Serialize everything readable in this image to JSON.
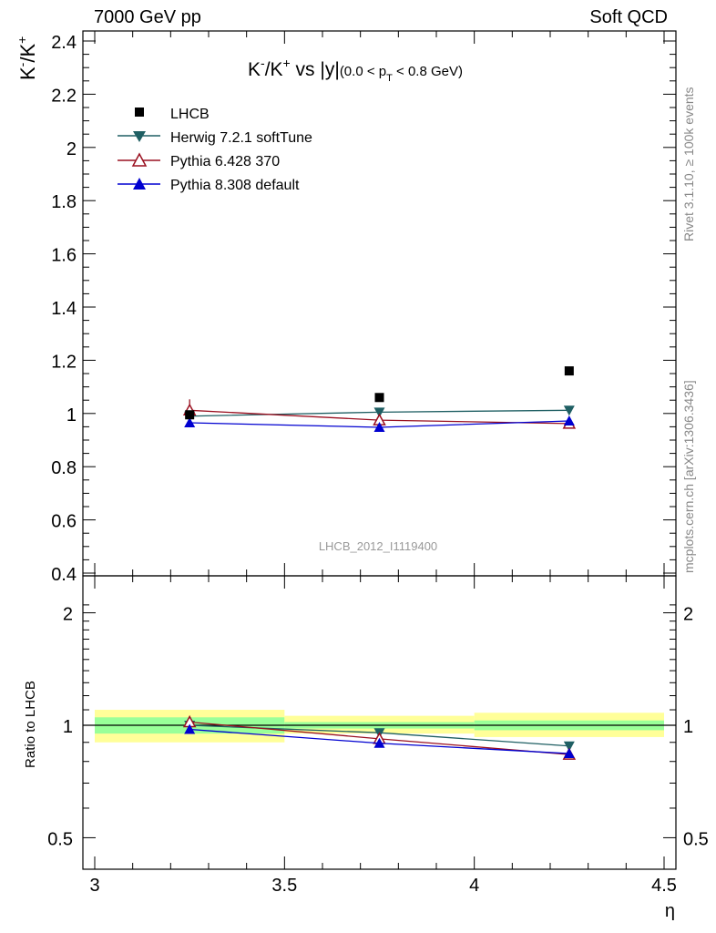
{
  "header": {
    "left": "7000 GeV pp",
    "right": "Soft QCD"
  },
  "side": {
    "rivet": "Rivet 3.1.10, ≥ 100k events",
    "source": "mcplots.cern.ch [arXiv:1306.3436]"
  },
  "colors": {
    "data": "#000000",
    "herwig": "#1f5f63",
    "pythia6": "#9a1020",
    "pythia8": "#0000d0",
    "band_inner": "#99ff99",
    "band_outer": "#ffff99"
  },
  "chart_data": [
    {
      "type": "scatter",
      "panel": "main",
      "title": "K⁻/K⁺ vs |y|(0.0 < p_T < 0.8 GeV)",
      "title_main": "K",
      "title_sup1": "-",
      "title_mid": "/K",
      "title_sup2": "+",
      "title_rest": " vs |y|",
      "title_small": "(0.0 < p",
      "title_sub": "T",
      "title_small_end": " < 0.8 GeV)",
      "ylabel_main": "K",
      "ylabel_sup1": "-",
      "ylabel_mid": "/K",
      "ylabel_sup2": "+",
      "watermark": "LHCB_2012_I1119400",
      "xlim": [
        3.0,
        4.5
      ],
      "ylim": [
        0.4,
        2.45
      ],
      "y_tick_labels": [
        "0.4",
        "0.6",
        "0.8",
        "1",
        "1.2",
        "1.4",
        "1.6",
        "1.8",
        "2",
        "2.2",
        "2.4"
      ],
      "y_tick_values": [
        0.4,
        0.6,
        0.8,
        1.0,
        1.2,
        1.4,
        1.6,
        1.8,
        2.0,
        2.2,
        2.4
      ],
      "legend_position": "top-left",
      "series": [
        {
          "name": "LHCB",
          "marker": "square",
          "x": [
            3.25,
            3.75,
            4.25
          ],
          "y": [
            0.995,
            1.06,
            1.16
          ]
        },
        {
          "name": "Herwig 7.2.1 softTune",
          "marker": "triangle-down",
          "x": [
            3.25,
            3.75,
            4.25
          ],
          "y": [
            0.99,
            1.005,
            1.012
          ]
        },
        {
          "name": "Pythia 6.428 370",
          "marker": "triangle-up-open",
          "x": [
            3.25,
            3.75,
            4.25
          ],
          "y": [
            1.012,
            0.975,
            0.962
          ]
        },
        {
          "name": "Pythia 8.308 default",
          "marker": "triangle-up",
          "x": [
            3.25,
            3.75,
            4.25
          ],
          "y": [
            0.965,
            0.948,
            0.972
          ]
        }
      ]
    },
    {
      "type": "line",
      "panel": "ratio",
      "ylabel": "Ratio to LHCB",
      "xlabel": "η",
      "xlim": [
        3.0,
        4.5
      ],
      "ylim": [
        0.4,
        2.2
      ],
      "log_y": true,
      "x_tick_labels": [
        "3",
        "3.5",
        "4",
        "4.5"
      ],
      "x_tick_values": [
        3.0,
        3.5,
        4.0,
        4.5
      ],
      "y_tick_labels": [
        "0.5",
        "1",
        "2"
      ],
      "y_tick_values": [
        0.5,
        1.0,
        2.0
      ],
      "bands": [
        {
          "x0": 3.0,
          "x1": 3.5,
          "inner": [
            0.95,
            1.05
          ],
          "outer": [
            0.9,
            1.1
          ]
        },
        {
          "x0": 3.5,
          "x1": 4.0,
          "inner": [
            0.98,
            1.02
          ],
          "outer": [
            0.95,
            1.06
          ]
        },
        {
          "x0": 4.0,
          "x1": 4.5,
          "inner": [
            0.97,
            1.03
          ],
          "outer": [
            0.93,
            1.08
          ]
        }
      ],
      "series": [
        {
          "name": "Herwig 7.2.1 softTune",
          "x": [
            3.25,
            3.75,
            4.25
          ],
          "y": [
            1.0,
            0.955,
            0.88
          ]
        },
        {
          "name": "Pythia 6.428 370",
          "x": [
            3.25,
            3.75,
            4.25
          ],
          "y": [
            1.02,
            0.92,
            0.835
          ]
        },
        {
          "name": "Pythia 8.308 default",
          "x": [
            3.25,
            3.75,
            4.25
          ],
          "y": [
            0.975,
            0.895,
            0.84
          ]
        }
      ]
    }
  ]
}
